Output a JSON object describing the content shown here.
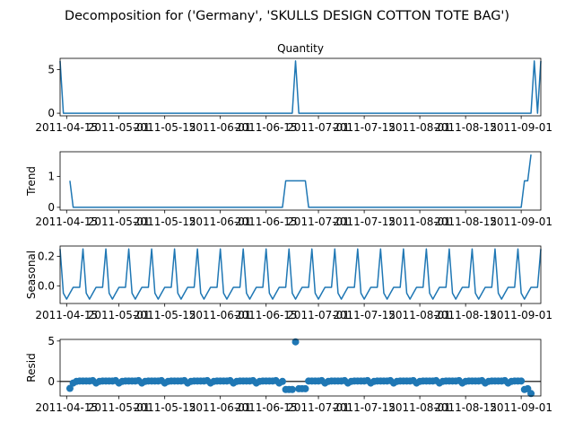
{
  "figure_title": "Decomposition for ('Germany', 'SKULLS  DESIGN  COTTON TOTE BAG')",
  "colors": {
    "line": "#1f77b4",
    "axis": "#000000",
    "zero_line": "#000000"
  },
  "x_tick_labels": [
    "2011-04-15",
    "2011-05-01",
    "2011-05-15",
    "2011-06-01",
    "2011-06-15",
    "2011-07-01",
    "2011-07-15",
    "2011-08-01",
    "2011-08-15",
    "2011-09-01"
  ],
  "chart_data": [
    {
      "type": "line",
      "title": "Quantity",
      "xlabel": "",
      "ylabel": "",
      "xlim": [
        "2011-04-13",
        "2011-09-07"
      ],
      "ylim": [
        -0.3,
        6.3
      ],
      "yticks": [
        0,
        5
      ],
      "ytick_labels": [
        "0",
        "5"
      ],
      "grid": false,
      "series": [
        {
          "x": [
            "2011-04-13",
            "2011-04-14",
            "2011-06-23",
            "2011-06-24",
            "2011-06-25",
            "2011-09-04",
            "2011-09-05",
            "2011-09-06",
            "2011-09-07"
          ],
          "values": [
            6,
            0,
            0,
            6,
            0,
            0,
            6,
            0,
            6
          ]
        }
      ]
    },
    {
      "type": "line",
      "title": "",
      "xlabel": "",
      "ylabel": "Trend",
      "xlim": [
        "2011-04-13",
        "2011-09-07"
      ],
      "ylim": [
        -0.09,
        1.8
      ],
      "yticks": [
        0,
        1
      ],
      "ytick_labels": [
        "0",
        "1"
      ],
      "grid": false,
      "series": [
        {
          "x": [
            "2011-04-16",
            "2011-04-17",
            "2011-06-20",
            "2011-06-21",
            "2011-06-27",
            "2011-06-28",
            "2011-09-01",
            "2011-09-02",
            "2011-09-03",
            "2011-09-04"
          ],
          "values": [
            0.86,
            0,
            0,
            0.86,
            0.86,
            0,
            0,
            0.86,
            0.86,
            1.71
          ]
        }
      ]
    },
    {
      "type": "line",
      "title": "",
      "xlabel": "",
      "ylabel": "Seasonal",
      "xlim": [
        "2011-04-13",
        "2011-09-07"
      ],
      "ylim": [
        -0.12,
        0.27
      ],
      "yticks": [
        0,
        0.2
      ],
      "ytick_labels": [
        "0.0",
        "0.2"
      ],
      "grid": false,
      "weekly_pattern": [
        0.25,
        -0.05,
        -0.09,
        -0.05,
        -0.01,
        -0.01,
        -0.01
      ],
      "pattern_start": "2011-04-13"
    },
    {
      "type": "scatter",
      "title": "",
      "xlabel": "",
      "ylabel": "Resid",
      "xlim": [
        "2011-04-13",
        "2011-09-07"
      ],
      "ylim": [
        -1.8,
        5.2
      ],
      "yticks": [
        0,
        5
      ],
      "ytick_labels": [
        "0",
        "5"
      ],
      "grid": false,
      "zero_line": 0,
      "baseline_noise": [
        0.1,
        -0.2,
        0.0,
        0.05,
        0.05,
        0.05,
        0.05
      ],
      "special_points": [
        {
          "x": "2011-04-16",
          "values": -0.86
        },
        {
          "x": "2011-06-21",
          "values": -1.0
        },
        {
          "x": "2011-06-22",
          "values": -1.0
        },
        {
          "x": "2011-06-23",
          "values": -1.0
        },
        {
          "x": "2011-06-24",
          "values": 4.9
        },
        {
          "x": "2011-06-25",
          "values": -0.9
        },
        {
          "x": "2011-06-26",
          "values": -0.9
        },
        {
          "x": "2011-06-27",
          "values": -0.9
        },
        {
          "x": "2011-09-02",
          "values": -1.0
        },
        {
          "x": "2011-09-03",
          "values": -0.9
        },
        {
          "x": "2011-09-04",
          "values": -1.5
        }
      ],
      "data_range": [
        "2011-04-16",
        "2011-09-04"
      ]
    }
  ]
}
